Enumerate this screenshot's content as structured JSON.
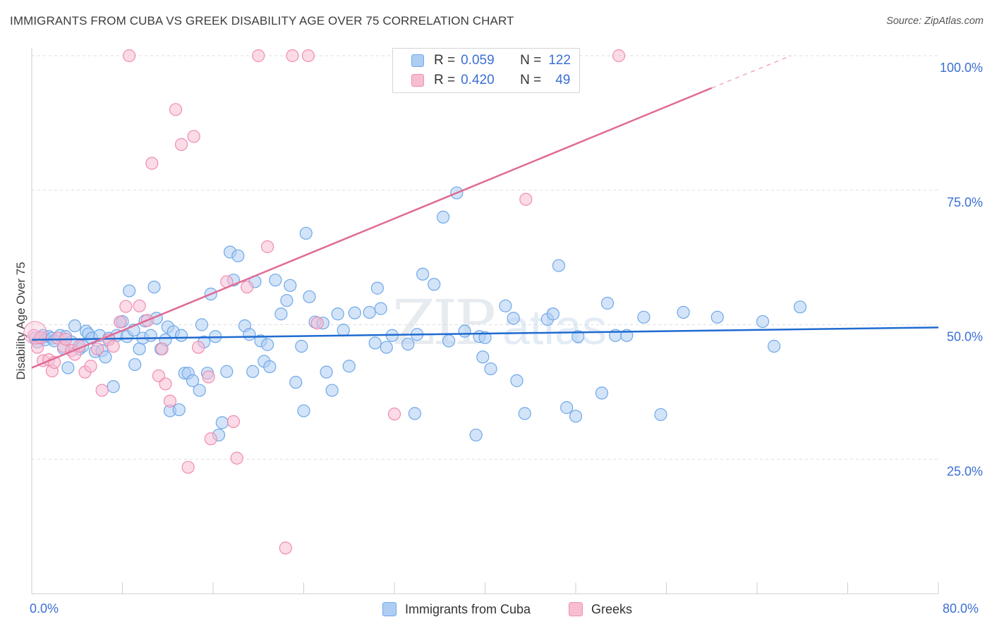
{
  "title": "IMMIGRANTS FROM CUBA VS GREEK DISABILITY AGE OVER 75 CORRELATION CHART",
  "source": "Source: ZipAtlas.com",
  "watermark": {
    "zip": "ZIP",
    "atlas": "atlas"
  },
  "legend": {
    "rows": [
      {
        "r_label": "R =",
        "r_value": "0.059",
        "n_label": "N =",
        "n_value": "122"
      },
      {
        "r_label": "R =",
        "r_value": "0.420",
        "n_label": "N =",
        "n_value": "49"
      }
    ]
  },
  "chart_data": {
    "type": "scatter",
    "title": "IMMIGRANTS FROM CUBA VS GREEK DISABILITY AGE OVER 75 CORRELATION CHART",
    "xlabel": "",
    "ylabel": "Disability Age Over 75",
    "xlim": [
      0,
      80
    ],
    "ylim": [
      0,
      105
    ],
    "x_tick_labels": [
      "0.0%",
      "80.0%"
    ],
    "y_ticks": [
      25,
      50,
      75,
      100
    ],
    "y_tick_labels": [
      "25.0%",
      "50.0%",
      "75.0%",
      "100.0%"
    ],
    "grid": "horizontal dashed",
    "legend_position": "top-center",
    "colors": {
      "cuba": "#6fa8ea",
      "cuba_fill": "#aecdf3",
      "cuba_line": "#1f6bd0",
      "greeks": "#f08cb0",
      "greeks_fill": "#f7bed3",
      "greeks_line": "#e06a95",
      "tick_label": "#3b6fd4"
    },
    "series": [
      {
        "name": "Immigrants from Cuba",
        "r": 0.059,
        "n": 122,
        "trend": {
          "x": [
            0,
            80
          ],
          "y": [
            47.2,
            49.5
          ]
        },
        "points": [
          [
            0.3,
            47.5
          ],
          [
            0.5,
            46.8
          ],
          [
            0.8,
            47.5
          ],
          [
            1.0,
            48.0
          ],
          [
            1.2,
            47.2
          ],
          [
            1.5,
            47.8
          ],
          [
            1.8,
            47.5
          ],
          [
            2.0,
            47.0
          ],
          [
            2.5,
            48.0
          ],
          [
            2.8,
            45.6
          ],
          [
            3.0,
            47.8
          ],
          [
            3.2,
            42.0
          ],
          [
            3.5,
            46.8
          ],
          [
            3.8,
            49.8
          ],
          [
            4.2,
            45.5
          ],
          [
            4.5,
            46.0
          ],
          [
            4.8,
            48.8
          ],
          [
            5.0,
            48.3
          ],
          [
            5.3,
            47.5
          ],
          [
            5.6,
            45.0
          ],
          [
            6.0,
            48.0
          ],
          [
            6.2,
            45.2
          ],
          [
            6.5,
            44.0
          ],
          [
            6.8,
            47.5
          ],
          [
            7.2,
            38.5
          ],
          [
            7.5,
            48.0
          ],
          [
            7.8,
            50.5
          ],
          [
            8.0,
            50.6
          ],
          [
            8.4,
            47.8
          ],
          [
            8.6,
            56.3
          ],
          [
            9.0,
            49.0
          ],
          [
            9.1,
            42.6
          ],
          [
            9.5,
            45.5
          ],
          [
            9.8,
            47.5
          ],
          [
            10.0,
            50.7
          ],
          [
            10.5,
            48.0
          ],
          [
            10.8,
            57.0
          ],
          [
            11.0,
            51.2
          ],
          [
            11.4,
            45.5
          ],
          [
            11.8,
            47.2
          ],
          [
            12.0,
            49.6
          ],
          [
            12.2,
            34.0
          ],
          [
            12.5,
            48.7
          ],
          [
            13.0,
            34.2
          ],
          [
            13.2,
            48.0
          ],
          [
            13.5,
            41.0
          ],
          [
            13.8,
            41.0
          ],
          [
            14.2,
            39.6
          ],
          [
            14.8,
            37.8
          ],
          [
            15.0,
            50.0
          ],
          [
            15.2,
            46.8
          ],
          [
            15.5,
            41.0
          ],
          [
            15.8,
            55.7
          ],
          [
            16.2,
            47.8
          ],
          [
            16.5,
            29.5
          ],
          [
            16.8,
            31.8
          ],
          [
            17.2,
            41.3
          ],
          [
            17.5,
            63.5
          ],
          [
            17.8,
            58.3
          ],
          [
            18.2,
            62.8
          ],
          [
            18.8,
            49.8
          ],
          [
            19.5,
            41.3
          ],
          [
            19.7,
            58.0
          ],
          [
            20.2,
            47.0
          ],
          [
            20.5,
            43.2
          ],
          [
            20.8,
            46.3
          ],
          [
            21.0,
            42.2
          ],
          [
            21.5,
            58.3
          ],
          [
            22.0,
            52.0
          ],
          [
            22.5,
            54.5
          ],
          [
            22.8,
            57.3
          ],
          [
            23.3,
            39.3
          ],
          [
            23.8,
            46.0
          ],
          [
            24.0,
            34.0
          ],
          [
            24.2,
            67.0
          ],
          [
            24.5,
            55.2
          ],
          [
            25.0,
            50.5
          ],
          [
            25.7,
            50.3
          ],
          [
            26.0,
            41.2
          ],
          [
            26.5,
            37.8
          ],
          [
            27.0,
            52.0
          ],
          [
            27.5,
            49.0
          ],
          [
            28.0,
            42.3
          ],
          [
            28.5,
            52.2
          ],
          [
            29.8,
            52.3
          ],
          [
            30.3,
            46.6
          ],
          [
            30.5,
            56.8
          ],
          [
            30.8,
            53.0
          ],
          [
            31.3,
            45.8
          ],
          [
            31.8,
            48.0
          ],
          [
            33.2,
            46.4
          ],
          [
            33.8,
            33.5
          ],
          [
            34.5,
            59.4
          ],
          [
            35.5,
            57.5
          ],
          [
            36.3,
            70.0
          ],
          [
            37.5,
            74.5
          ],
          [
            38.2,
            48.8
          ],
          [
            39.2,
            29.5
          ],
          [
            39.5,
            47.8
          ],
          [
            39.8,
            44.0
          ],
          [
            40.5,
            41.8
          ],
          [
            41.8,
            53.5
          ],
          [
            42.5,
            51.2
          ],
          [
            42.8,
            39.6
          ],
          [
            43.5,
            33.5
          ],
          [
            45.5,
            51.0
          ],
          [
            46.0,
            52.0
          ],
          [
            46.5,
            61.0
          ],
          [
            47.2,
            34.6
          ],
          [
            48.0,
            33.0
          ],
          [
            48.2,
            47.8
          ],
          [
            50.3,
            37.3
          ],
          [
            50.8,
            54.0
          ],
          [
            51.5,
            48.0
          ],
          [
            52.5,
            48.0
          ],
          [
            54.0,
            51.4
          ],
          [
            55.5,
            33.3
          ],
          [
            57.5,
            52.3
          ],
          [
            60.5,
            51.4
          ],
          [
            64.5,
            50.6
          ],
          [
            65.5,
            46.0
          ],
          [
            67.8,
            53.3
          ],
          [
            40.0,
            47.6
          ],
          [
            36.8,
            47.0
          ],
          [
            34.0,
            48.2
          ],
          [
            19.2,
            48.2
          ]
        ]
      },
      {
        "name": "Greeks",
        "r": 0.42,
        "n": 49,
        "trend": {
          "x": [
            0,
            60
          ],
          "y": [
            42.0,
            94.0
          ]
        },
        "trend_dashed": {
          "x": [
            60,
            67
          ],
          "y": [
            94.0,
            100.0
          ]
        },
        "points": [
          [
            0.2,
            48.0
          ],
          [
            0.5,
            45.8
          ],
          [
            0.8,
            47.6
          ],
          [
            1.0,
            43.3
          ],
          [
            1.5,
            43.5
          ],
          [
            1.8,
            41.4
          ],
          [
            2.0,
            43.0
          ],
          [
            2.3,
            47.5
          ],
          [
            2.8,
            46.0
          ],
          [
            3.0,
            47.3
          ],
          [
            3.5,
            45.2
          ],
          [
            3.8,
            44.5
          ],
          [
            4.2,
            46.0
          ],
          [
            4.7,
            41.2
          ],
          [
            5.2,
            42.3
          ],
          [
            5.8,
            45.5
          ],
          [
            6.2,
            37.8
          ],
          [
            6.8,
            47.2
          ],
          [
            7.2,
            46.0
          ],
          [
            7.8,
            50.5
          ],
          [
            8.3,
            53.4
          ],
          [
            8.6,
            100.0
          ],
          [
            9.5,
            53.5
          ],
          [
            10.2,
            50.8
          ],
          [
            10.6,
            80.0
          ],
          [
            11.2,
            40.5
          ],
          [
            11.5,
            45.5
          ],
          [
            11.8,
            39.0
          ],
          [
            12.2,
            35.8
          ],
          [
            12.7,
            90.0
          ],
          [
            13.2,
            83.5
          ],
          [
            13.8,
            23.5
          ],
          [
            14.3,
            85.0
          ],
          [
            14.7,
            45.8
          ],
          [
            15.6,
            40.3
          ],
          [
            15.8,
            28.8
          ],
          [
            17.2,
            58.0
          ],
          [
            17.8,
            32.0
          ],
          [
            18.1,
            25.2
          ],
          [
            19.0,
            57.0
          ],
          [
            20.0,
            100.0
          ],
          [
            20.8,
            64.5
          ],
          [
            22.4,
            8.5
          ],
          [
            23.0,
            100.0
          ],
          [
            24.4,
            100.0
          ],
          [
            25.2,
            50.3
          ],
          [
            32.0,
            33.4
          ],
          [
            43.6,
            73.3
          ],
          [
            51.8,
            100.0
          ]
        ]
      }
    ]
  },
  "bottom_legend": [
    {
      "label": "Immigrants from Cuba"
    },
    {
      "label": "Greeks"
    }
  ]
}
